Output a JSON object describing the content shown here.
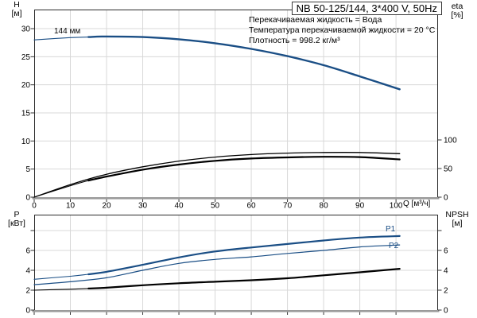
{
  "title_box": {
    "label": "NB 50-125/144, 3*400 V, 50Hz"
  },
  "info": {
    "line1": "Перекачиваемая жидкость = Вода",
    "line2": "Температура перекачиваемой жидкости = 20 °C",
    "line3": "Плотность = 998.2 кг/м³"
  },
  "axis_labels": {
    "top_left_1": "H",
    "top_left_2": "[м]",
    "top_right_1": "eta",
    "top_right_2": "[%]",
    "bottom_left_1": "P",
    "bottom_left_2": "[кВт]",
    "bottom_right_1": "NPSH",
    "bottom_right_2": "[м]",
    "x_unit": "Q [м³/ч]"
  },
  "curve_labels": {
    "impeller": "144 мм",
    "p1": "P1",
    "p2": "P2"
  },
  "colors": {
    "curve_blue": "#1a4e85",
    "curve_black": "#000000",
    "grid": "#d8d8d8",
    "axis_heavy": "#9b9b9b",
    "border": "#2b2b2b",
    "tick": "#333333"
  },
  "chart_data": [
    {
      "type": "line",
      "title": "NB 50-125/144, 3*400 V, 50Hz",
      "x_label": "Q [м³/ч]",
      "y_left_label": "H [м]",
      "y_right_label": "eta [%]",
      "x_range": [
        0,
        111.4
      ],
      "y_left_range": [
        0,
        33.4
      ],
      "y_right_range": [
        0,
        327.8
      ],
      "x_grid": [
        10,
        20,
        30,
        40,
        50,
        60,
        70,
        80,
        90,
        100
      ],
      "y_grid": [
        5,
        10,
        15,
        20,
        25,
        30
      ],
      "x_ticks": [
        0,
        10,
        20,
        30,
        40,
        50,
        60,
        70,
        80,
        90,
        100
      ],
      "show_x_tick_labels": true,
      "y_left_ticks": [
        0,
        5,
        10,
        15,
        20,
        25,
        30
      ],
      "y_left_minor": [],
      "y_right_ticks": [
        0,
        50,
        100
      ],
      "y_right_minor": [],
      "series": [
        {
          "name": "head-curve-144mm",
          "label": "144 мм",
          "axis": "left",
          "color": "blue",
          "width": 2.4,
          "thin_until": 15,
          "points": [
            [
              0,
              28.0
            ],
            [
              10,
              28.4
            ],
            [
              15,
              28.5
            ],
            [
              20,
              28.6
            ],
            [
              30,
              28.5
            ],
            [
              40,
              28.1
            ],
            [
              50,
              27.4
            ],
            [
              60,
              26.4
            ],
            [
              70,
              25.1
            ],
            [
              80,
              23.5
            ],
            [
              90,
              21.5
            ],
            [
              101,
              19.2
            ]
          ]
        },
        {
          "name": "eta-upper",
          "axis": "right",
          "color": "black",
          "width": 1.3,
          "points": [
            [
              0,
              0
            ],
            [
              10,
              22
            ],
            [
              20,
              40
            ],
            [
              30,
              53
            ],
            [
              40,
              63
            ],
            [
              50,
              70
            ],
            [
              60,
              74.5
            ],
            [
              70,
              77
            ],
            [
              80,
              78
            ],
            [
              90,
              78
            ],
            [
              101,
              76
            ]
          ]
        },
        {
          "name": "eta-lower",
          "axis": "right",
          "color": "black",
          "width": 2.2,
          "thin_until": 15,
          "points": [
            [
              0,
              0
            ],
            [
              10,
              20
            ],
            [
              15,
              29
            ],
            [
              20,
              36
            ],
            [
              30,
              48
            ],
            [
              40,
              57
            ],
            [
              50,
              63.5
            ],
            [
              60,
              67.5
            ],
            [
              70,
              69.5
            ],
            [
              80,
              70.5
            ],
            [
              90,
              70
            ],
            [
              101,
              66
            ]
          ]
        }
      ]
    },
    {
      "type": "line",
      "title": "",
      "x_label": "Q [м³/ч]",
      "y_left_label": "P [кВт]",
      "y_right_label": "NPSH [м]",
      "x_range": [
        0,
        111.4
      ],
      "y_left_range": [
        0,
        9.6
      ],
      "y_right_range": [
        0,
        9.6
      ],
      "x_grid": [
        10,
        20,
        30,
        40,
        50,
        60,
        70,
        80,
        90,
        100
      ],
      "y_grid": [
        2,
        4,
        6,
        8
      ],
      "x_ticks": [
        0,
        10,
        20,
        30,
        40,
        50,
        60,
        70,
        80,
        90,
        100
      ],
      "show_x_tick_labels": false,
      "y_left_ticks": [
        0,
        2,
        4,
        6
      ],
      "y_left_minor": [
        8
      ],
      "y_right_ticks": [
        0,
        2,
        4,
        6
      ],
      "y_right_minor": [
        8
      ],
      "series": [
        {
          "name": "P1",
          "label": "P1",
          "axis": "left",
          "color": "blue",
          "width": 2.2,
          "thin_until": 15,
          "points": [
            [
              0,
              3.1
            ],
            [
              10,
              3.4
            ],
            [
              15,
              3.6
            ],
            [
              20,
              3.85
            ],
            [
              30,
              4.55
            ],
            [
              40,
              5.3
            ],
            [
              50,
              5.9
            ],
            [
              60,
              6.3
            ],
            [
              70,
              6.65
            ],
            [
              80,
              7.0
            ],
            [
              90,
              7.3
            ],
            [
              101,
              7.45
            ]
          ]
        },
        {
          "name": "P2",
          "label": "P2",
          "axis": "left",
          "color": "blue",
          "width": 1.2,
          "points": [
            [
              0,
              2.55
            ],
            [
              10,
              2.85
            ],
            [
              20,
              3.25
            ],
            [
              30,
              4.0
            ],
            [
              40,
              4.7
            ],
            [
              50,
              5.1
            ],
            [
              60,
              5.35
            ],
            [
              70,
              5.7
            ],
            [
              80,
              6.0
            ],
            [
              90,
              6.35
            ],
            [
              101,
              6.55
            ]
          ]
        },
        {
          "name": "NPSH",
          "axis": "right",
          "color": "black",
          "width": 2.2,
          "thin_until": 15,
          "points": [
            [
              0,
              2.0
            ],
            [
              10,
              2.1
            ],
            [
              15,
              2.17
            ],
            [
              20,
              2.25
            ],
            [
              30,
              2.5
            ],
            [
              40,
              2.7
            ],
            [
              50,
              2.85
            ],
            [
              60,
              3.0
            ],
            [
              70,
              3.2
            ],
            [
              80,
              3.5
            ],
            [
              90,
              3.8
            ],
            [
              101,
              4.15
            ]
          ]
        }
      ]
    }
  ]
}
